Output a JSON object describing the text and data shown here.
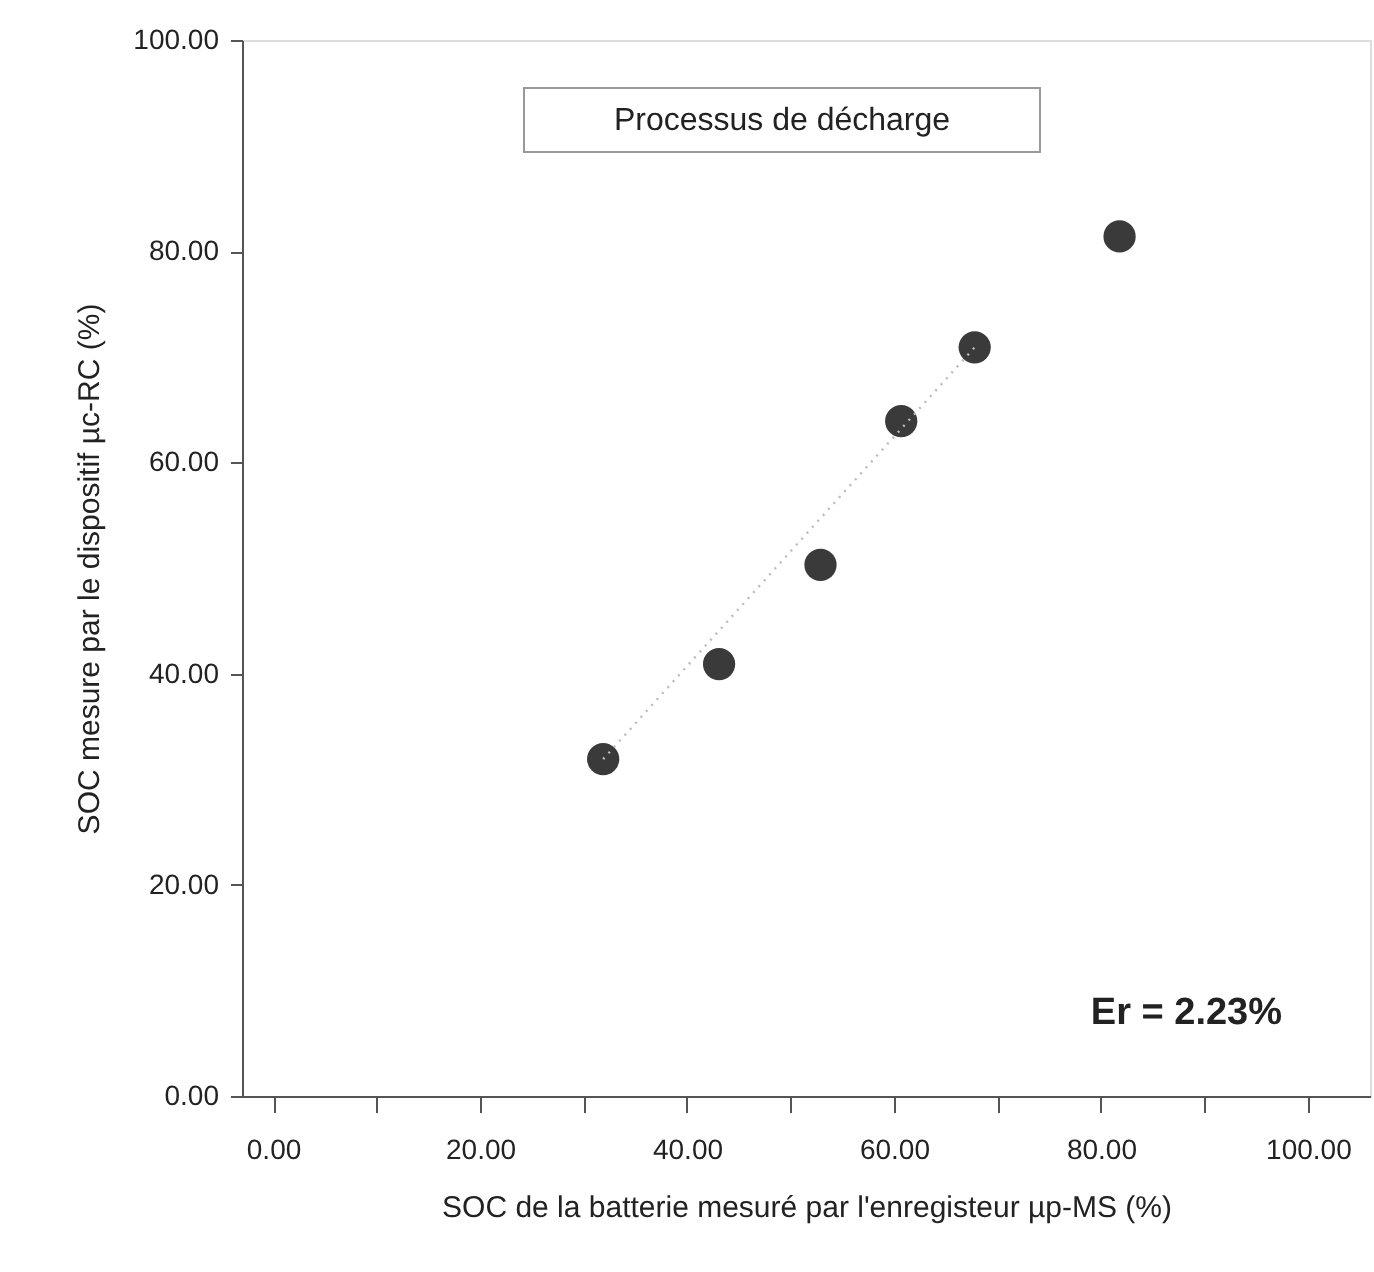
{
  "chart_data": {
    "type": "scatter",
    "title": "Processus de décharge",
    "xlabel": "SOC de la batterie mesuré par l'enregisteur µp-MS (%)",
    "ylabel": "SOC mesure par le dispositif µc-RC (%)",
    "annotations": [
      "Er = 2.23%"
    ],
    "xlim": [
      -3,
      106
    ],
    "ylim": [
      0,
      100
    ],
    "xticks": [
      {
        "value": 0,
        "label": "0.00"
      },
      {
        "value": 10,
        "label": null
      },
      {
        "value": 20,
        "label": "20.00"
      },
      {
        "value": 30,
        "label": null
      },
      {
        "value": 40,
        "label": "40.00"
      },
      {
        "value": 50,
        "label": null
      },
      {
        "value": 60,
        "label": "60.00"
      },
      {
        "value": 70,
        "label": null
      },
      {
        "value": 80,
        "label": "80.00"
      },
      {
        "value": 90,
        "label": null
      },
      {
        "value": 100,
        "label": "100.00"
      }
    ],
    "yticks": [
      {
        "value": 0,
        "label": "0.00"
      },
      {
        "value": 20,
        "label": "20.00"
      },
      {
        "value": 40,
        "label": "40.00"
      },
      {
        "value": 60,
        "label": "60.00"
      },
      {
        "value": 80,
        "label": "80.00"
      },
      {
        "value": 100,
        "label": "100.00"
      }
    ],
    "grid": false,
    "series": [
      {
        "type": "scatter",
        "marker": "circle",
        "color": "#3a3a3a",
        "x": [
          31.9,
          43.1,
          52.9,
          60.7,
          67.8,
          81.8
        ],
        "values": [
          31.9,
          40.9,
          50.3,
          63.9,
          70.9,
          81.4
        ]
      },
      {
        "type": "line",
        "color": "#bbbbbb",
        "line_style": "dotted",
        "x": [
          31.9,
          67.8
        ],
        "values": [
          31.9,
          70.9
        ]
      }
    ]
  }
}
